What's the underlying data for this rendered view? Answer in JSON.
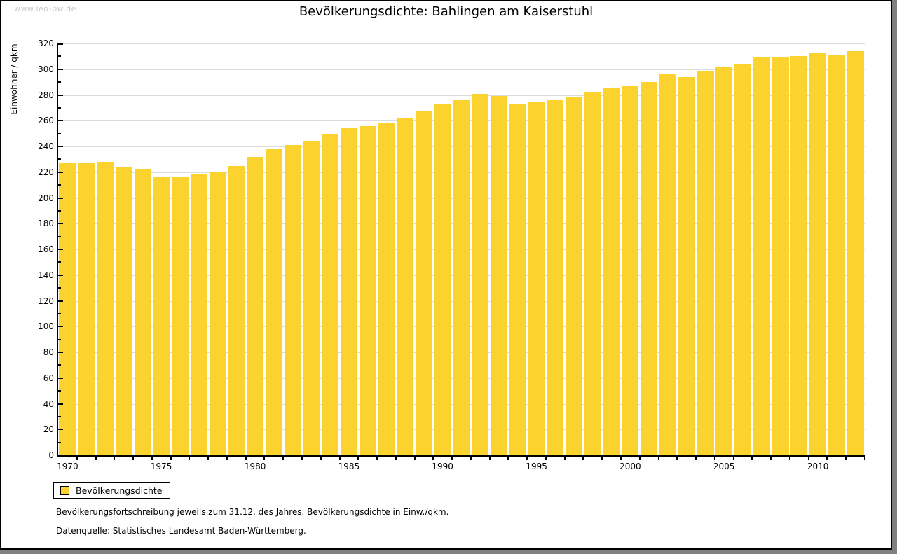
{
  "watermark": "www.leo-bw.de",
  "legend": {
    "label": "Bevölkerungsdichte"
  },
  "footer": {
    "note": "Bevölkerungsfortschreibung jeweils zum 31.12. des Jahres. Bevölkerungsdichte in Einw./qkm.",
    "source": "Datenquelle: Statistisches Landesamt Baden-Württemberg."
  },
  "chart_data": {
    "type": "bar",
    "title": "Bevölkerungsdichte: Bahlingen am Kaiserstuhl",
    "xlabel": "",
    "ylabel": "Einwohner / qkm",
    "series_name": "Bevölkerungsdichte",
    "categories": [
      1970,
      1971,
      1972,
      1973,
      1974,
      1975,
      1976,
      1977,
      1978,
      1979,
      1980,
      1981,
      1982,
      1983,
      1984,
      1985,
      1986,
      1987,
      1988,
      1989,
      1990,
      1991,
      1992,
      1993,
      1994,
      1995,
      1996,
      1997,
      1998,
      1999,
      2000,
      2001,
      2002,
      2003,
      2004,
      2005,
      2006,
      2007,
      2008,
      2009,
      2010,
      2011,
      2012
    ],
    "values": [
      227,
      227,
      228,
      224,
      222,
      216,
      216,
      218,
      220,
      225,
      232,
      238,
      241,
      244,
      250,
      254,
      256,
      258,
      262,
      267,
      273,
      276,
      281,
      279,
      273,
      275,
      276,
      278,
      282,
      285,
      287,
      290,
      296,
      294,
      299,
      302,
      304,
      309,
      309,
      310,
      313,
      311,
      314
    ],
    "ylim": [
      0,
      320
    ],
    "y_ticks": [
      0,
      20,
      40,
      60,
      80,
      100,
      120,
      140,
      160,
      180,
      200,
      220,
      240,
      260,
      280,
      300,
      320
    ],
    "y_minor_step": 10,
    "x_ticks": [
      1970,
      1975,
      1980,
      1985,
      1990,
      1995,
      2000,
      2005,
      2010
    ],
    "grid": "horizontal",
    "legend_position": "bottom-left",
    "bar_color": "#FCD32E",
    "grid_color": "#DCDCDC"
  }
}
